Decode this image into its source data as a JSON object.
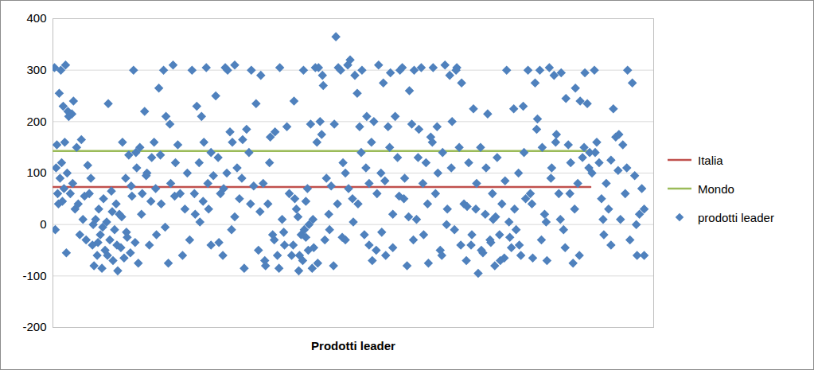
{
  "chart_data": {
    "type": "scatter",
    "x_label": "Prodotti leader",
    "xlim": [
      0,
      760
    ],
    "ylim": [
      -200,
      400
    ],
    "yticks": [
      -200,
      -100,
      0,
      100,
      200,
      300,
      400
    ],
    "grid": true,
    "tick_labels": "y",
    "legend": "right",
    "series": [
      {
        "name": "Italia",
        "type": "line",
        "color": "#c0504d",
        "x": [
          0,
          680
        ],
        "values": [
          73,
          73
        ]
      },
      {
        "name": "Mondo",
        "type": "line",
        "color": "#9bbb59",
        "x": [
          0,
          680
        ],
        "values": [
          143,
          143
        ]
      },
      {
        "name": "prodotti leader",
        "type": "scatter",
        "marker": "diamond",
        "color": "#4f81bd",
        "x": [
          2,
          3,
          4,
          5,
          6,
          7,
          8,
          9,
          10,
          11,
          12,
          13,
          14,
          15,
          16,
          17,
          18,
          19,
          20,
          22,
          24,
          25,
          26,
          28,
          30,
          32,
          34,
          36,
          38,
          40,
          42,
          44,
          46,
          48,
          50,
          52,
          54,
          56,
          58,
          60,
          62,
          64,
          66,
          68,
          70,
          72,
          74,
          76,
          78,
          80,
          82,
          84,
          86,
          88,
          90,
          92,
          94,
          96,
          98,
          100,
          102,
          104,
          106,
          108,
          51,
          57,
          63,
          69,
          75,
          81,
          87,
          93,
          99,
          105,
          110,
          113,
          116,
          119,
          122,
          125,
          128,
          131,
          134,
          137,
          140,
          143,
          146,
          149,
          152,
          155,
          158,
          161,
          164,
          167,
          170,
          173,
          112,
          118,
          124,
          130,
          136,
          142,
          148,
          154,
          176,
          179,
          182,
          185,
          188,
          191,
          194,
          197,
          200,
          203,
          206,
          209,
          212,
          215,
          218,
          221,
          224,
          227,
          230,
          233,
          236,
          239,
          242,
          245,
          248,
          251,
          254,
          257,
          180,
          190,
          200,
          210,
          220,
          230,
          240,
          250,
          186,
          196,
          216,
          226,
          260,
          263,
          266,
          269,
          272,
          275,
          278,
          281,
          284,
          287,
          290,
          293,
          296,
          299,
          262,
          268,
          274,
          280,
          286,
          292,
          302,
          305,
          308,
          311,
          314,
          317,
          320,
          323,
          326,
          329,
          332,
          335,
          338,
          341,
          344,
          304,
          310,
          316,
          322,
          328,
          334,
          340,
          306,
          318,
          330,
          342,
          312,
          324,
          336,
          320,
          346,
          349,
          352,
          355,
          358,
          361,
          364,
          367,
          370,
          373,
          376,
          379,
          382,
          385,
          388,
          391,
          394,
          397,
          400,
          403,
          406,
          409,
          412,
          415,
          418,
          421,
          424,
          427,
          430,
          433,
          436,
          439,
          350,
          360,
          370,
          380,
          390,
          400,
          410,
          420,
          430,
          356,
          366,
          386,
          396,
          416,
          426,
          438,
          374,
          404,
          442,
          445,
          448,
          451,
          454,
          457,
          460,
          463,
          466,
          469,
          472,
          475,
          478,
          481,
          484,
          487,
          490,
          493,
          496,
          499,
          502,
          505,
          508,
          511,
          514,
          517,
          520,
          444,
          456,
          468,
          480,
          492,
          504,
          516,
          450,
          462,
          474,
          486,
          498,
          510,
          523,
          526,
          529,
          532,
          535,
          538,
          541,
          544,
          547,
          550,
          553,
          556,
          559,
          562,
          565,
          568,
          571,
          574,
          577,
          580,
          583,
          586,
          589,
          592,
          595,
          598,
          524,
          530,
          536,
          542,
          548,
          554,
          560,
          566,
          572,
          578,
          584,
          590,
          596,
          557,
          601,
          604,
          607,
          610,
          613,
          616,
          619,
          622,
          625,
          628,
          631,
          634,
          637,
          640,
          643,
          646,
          649,
          652,
          655,
          658,
          661,
          664,
          667,
          670,
          673,
          676,
          679,
          606,
          618,
          630,
          642,
          654,
          666,
          678,
          612,
          624,
          636,
          648,
          660,
          672,
          682,
          685,
          688,
          691,
          694,
          697,
          700,
          703,
          706,
          709,
          712,
          715,
          718,
          721,
          724,
          727,
          730,
          733,
          736,
          739,
          742,
          745,
          748,
          686,
          696,
          706,
          716,
          726,
          738,
          748
        ],
        "values": [
          305,
          -10,
          110,
          155,
          60,
          40,
          255,
          90,
          300,
          120,
          45,
          230,
          70,
          160,
          310,
          -55,
          100,
          220,
          210,
          60,
          215,
          80,
          240,
          30,
          150,
          40,
          -20,
          165,
          10,
          55,
          -30,
          115,
          60,
          90,
          -40,
          -80,
          10,
          -60,
          30,
          -20,
          -85,
          50,
          -50,
          5,
          235,
          -30,
          65,
          -70,
          -10,
          40,
          -90,
          20,
          -45,
          160,
          -65,
          90,
          -25,
          135,
          -55,
          55,
          300,
          -35,
          110,
          -75,
          0,
          -35,
          -5,
          -60,
          25,
          -40,
          15,
          -15,
          75,
          140,
          150,
          60,
          220,
          100,
          -40,
          130,
          160,
          -20,
          265,
          40,
          300,
          210,
          -75,
          80,
          310,
          120,
          155,
          60,
          -60,
          30,
          100,
          -30,
          20,
          95,
          45,
          70,
          135,
          -5,
          195,
          55,
          300,
          60,
          230,
          120,
          210,
          160,
          305,
          30,
          -40,
          95,
          250,
          130,
          60,
          -60,
          305,
          300,
          180,
          160,
          310,
          110,
          50,
          90,
          -85,
          185,
          140,
          300,
          75,
          235,
          20,
          45,
          140,
          -35,
          100,
          15,
          165,
          40,
          5,
          80,
          70,
          -10,
          -50,
          290,
          80,
          -80,
          40,
          170,
          -20,
          180,
          -60,
          305,
          10,
          -40,
          190,
          60,
          25,
          -70,
          120,
          -30,
          -85,
          -15,
          -60,
          240,
          30,
          -90,
          -20,
          300,
          45,
          -50,
          195,
          10,
          305,
          -75,
          200,
          290,
          -30,
          -40,
          15,
          -70,
          70,
          -85,
          160,
          175,
          50,
          -10,
          -45,
          270,
          -60,
          0,
          305,
          -25,
          90,
          20,
          75,
          -80,
          365,
          305,
          300,
          120,
          -30,
          310,
          320,
          50,
          290,
          255,
          190,
          300,
          -20,
          210,
          80,
          160,
          200,
          -50,
          310,
          100,
          275,
          -60,
          190,
          295,
          20,
          210,
          130,
          300,
          -10,
          40,
          100,
          5,
          140,
          -40,
          60,
          85,
          -45,
          195,
          -25,
          40,
          110,
          -15,
          150,
          55,
          70,
          -70,
          305,
          90,
          -80,
          260,
          195,
          300,
          10,
          185,
          305,
          -20,
          120,
          -75,
          170,
          305,
          60,
          100,
          -50,
          140,
          310,
          30,
          290,
          200,
          -10,
          305,
          150,
          275,
          40,
          50,
          -30,
          80,
          160,
          -60,
          110,
          -40,
          15,
          130,
          40,
          190,
          0,
          300,
          -70,
          120,
          -40,
          225,
          30,
          -95,
          150,
          -55,
          20,
          215,
          -30,
          60,
          -80,
          130,
          -20,
          40,
          -65,
          300,
          5,
          -45,
          225,
          -10,
          100,
          -60,
          230,
          50,
          35,
          -20,
          80,
          -50,
          110,
          -35,
          15,
          -70,
          85,
          -25,
          30,
          -40,
          140,
          10,
          300,
          60,
          -65,
          275,
          205,
          300,
          150,
          20,
          -70,
          305,
          110,
          290,
          175,
          60,
          295,
          -10,
          245,
          155,
          120,
          -75,
          265,
          80,
          240,
          130,
          295,
          235,
          140,
          40,
          -30,
          90,
          10,
          60,
          -60,
          110,
          185,
          5,
          160,
          -45,
          30,
          150,
          100,
          300,
          160,
          120,
          50,
          -20,
          80,
          30,
          125,
          225,
          170,
          105,
          10,
          155,
          60,
          300,
          -30,
          275,
          95,
          -60,
          20,
          70,
          -60,
          140,
          10,
          -40,
          175,
          110,
          0,
          30
        ]
      }
    ]
  }
}
